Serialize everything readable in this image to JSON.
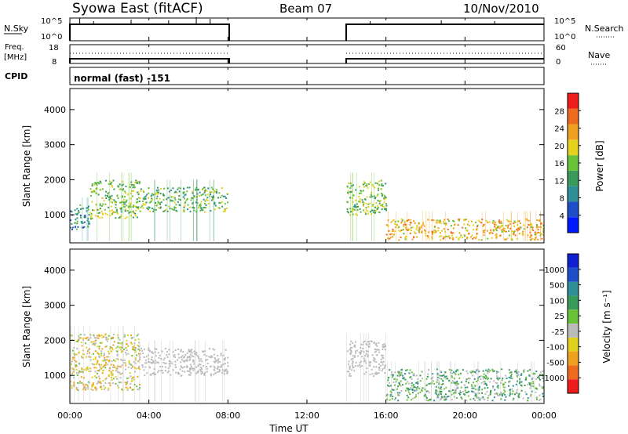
{
  "header": {
    "title": "Syowa East (fitACF)",
    "beam": "Beam 07",
    "date": "10/Nov/2010"
  },
  "panels": {
    "nsky": {
      "label": "N.Sky",
      "ticks": [
        "10^5",
        "10^0"
      ],
      "right_label": "N.Search",
      "right_ticks": [
        "10^5",
        "10^0"
      ]
    },
    "freq": {
      "label_line1": "Freq.",
      "label_line2": "[MHz]",
      "ticks": [
        "18",
        "8"
      ],
      "right_label": "Nave",
      "right_ticks": [
        "60",
        "0"
      ]
    },
    "cpid": {
      "label": "CPID",
      "text": "normal (fast) -151"
    }
  },
  "colors": {
    "power_scale": [
      "#0018ff",
      "#1f4fc8",
      "#2f8f99",
      "#3a9a5a",
      "#6ac23a",
      "#e6d21e",
      "#f0a020",
      "#ee6a1e",
      "#ee1c1c"
    ],
    "velocity_scale": [
      "#ee1c1c",
      "#ee6a1e",
      "#f0a020",
      "#e0d020",
      "#bbbbbb",
      "#6ac23a",
      "#3a9a5a",
      "#2f8f99",
      "#1f4fc8",
      "#1020d0"
    ],
    "ground_scatter": "#bbbbbb"
  },
  "chart_data": [
    {
      "type": "heatmap",
      "name": "power",
      "ylabel": "Slant Range [km]",
      "y_ticks": [
        "1000",
        "2000",
        "3000",
        "4000"
      ],
      "ylim": [
        200,
        4600
      ],
      "colorbar_label": "Power [dB]",
      "colorbar_ticks": [
        "28",
        "24",
        "20",
        "16",
        "12",
        "8",
        "4"
      ],
      "data_gap_ut": [
        8.0,
        14.0
      ],
      "echo_bands": [
        {
          "t0": 0.0,
          "t1": 1.0,
          "r0": 600,
          "r1": 1300,
          "value": 10
        },
        {
          "t0": 1.0,
          "t1": 3.5,
          "r0": 900,
          "r1": 2000,
          "value": 16
        },
        {
          "t0": 3.5,
          "t1": 8.0,
          "r0": 1100,
          "r1": 1800,
          "value": 14
        },
        {
          "t0": 14.0,
          "t1": 16.0,
          "r0": 1000,
          "r1": 2000,
          "value": 16
        },
        {
          "t0": 16.0,
          "t1": 24.0,
          "r0": 300,
          "r1": 900,
          "value": 22
        }
      ]
    },
    {
      "type": "heatmap",
      "name": "velocity",
      "ylabel": "Slant Range [km]",
      "y_ticks": [
        "1000",
        "2000",
        "3000",
        "4000"
      ],
      "ylim": [
        200,
        4600
      ],
      "colorbar_label": "Velocity [m s⁻¹]",
      "colorbar_ticks": [
        "1000",
        "500",
        "100",
        "25",
        "-25",
        "-100",
        "-500",
        "-1000"
      ],
      "data_gap_ut": [
        8.0,
        14.0
      ],
      "echo_bands": [
        {
          "t0": 0.0,
          "t1": 3.5,
          "r0": 600,
          "r1": 2200,
          "value": -300
        },
        {
          "t0": 3.5,
          "t1": 8.0,
          "r0": 1000,
          "r1": 1800,
          "value": 0
        },
        {
          "t0": 14.0,
          "t1": 16.0,
          "r0": 1000,
          "r1": 2000,
          "value": 0
        },
        {
          "t0": 16.0,
          "t1": 24.0,
          "r0": 300,
          "r1": 1200,
          "value": 200
        }
      ]
    }
  ],
  "x_axis": {
    "label": "Time UT",
    "ticks": [
      "00:00",
      "04:00",
      "08:00",
      "12:00",
      "16:00",
      "20:00",
      "00:00"
    ],
    "xlim_hours": [
      0,
      24
    ]
  }
}
